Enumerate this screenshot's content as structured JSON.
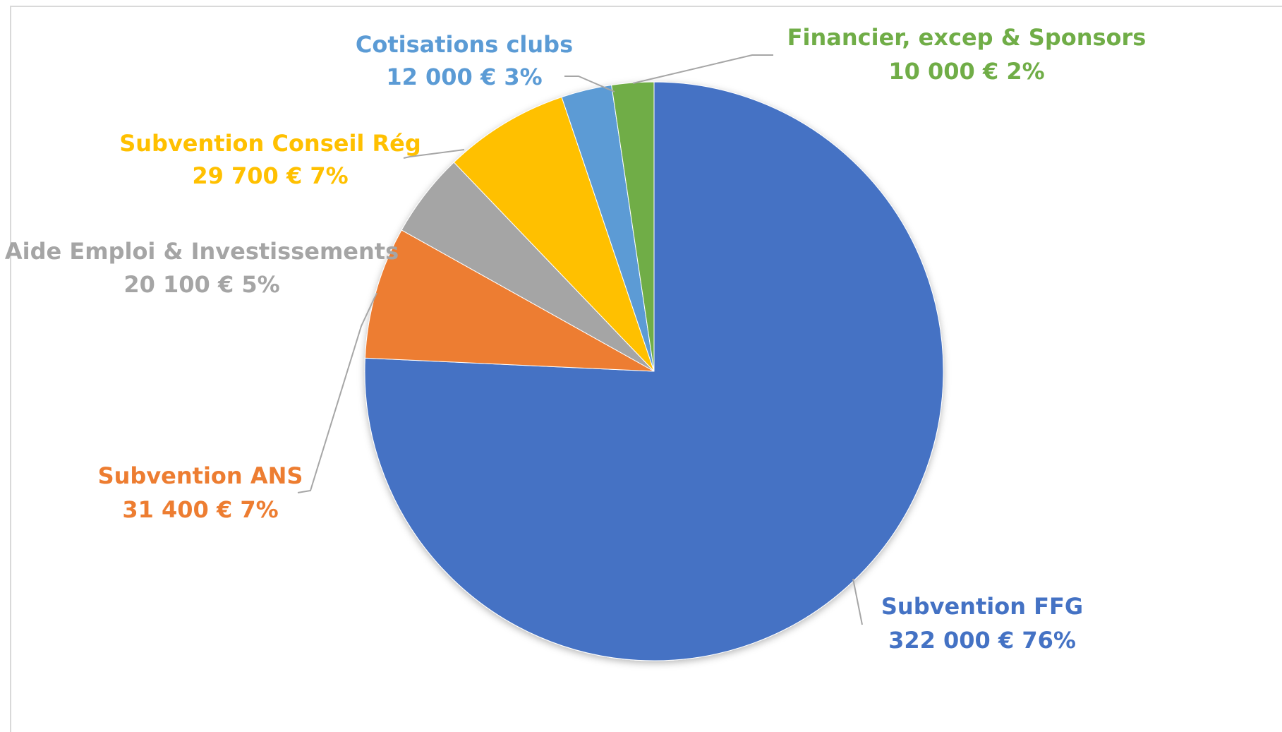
{
  "chart_data": {
    "type": "pie",
    "slices": [
      {
        "name": "Subvention FFG",
        "amount": "322 000 €",
        "percent": "76%",
        "value": 322000,
        "color": "#4472c4"
      },
      {
        "name": "Subvention ANS",
        "amount": "31 400 €",
        "percent": "7%",
        "value": 31400,
        "color": "#ed7d31"
      },
      {
        "name": "Aide Emploi & Investissements",
        "amount": "20 100 €",
        "percent": "5%",
        "value": 20100,
        "color": "#a5a5a5"
      },
      {
        "name": "Subvention Conseil Rég",
        "amount": "29 700 €",
        "percent": "7%",
        "value": 29700,
        "color": "#ffc000"
      },
      {
        "name": "Cotisations clubs",
        "amount": "12 000 €",
        "percent": "3%",
        "value": 12000,
        "color": "#5b9bd5"
      },
      {
        "name": "Financier, excep & Sponsors",
        "amount": "10 000 €",
        "percent": "2%",
        "value": 10000,
        "color": "#70ad47"
      }
    ],
    "start": "12 o'clock",
    "direction": "clockwise",
    "leader_line_color": "#a6a6a6"
  }
}
